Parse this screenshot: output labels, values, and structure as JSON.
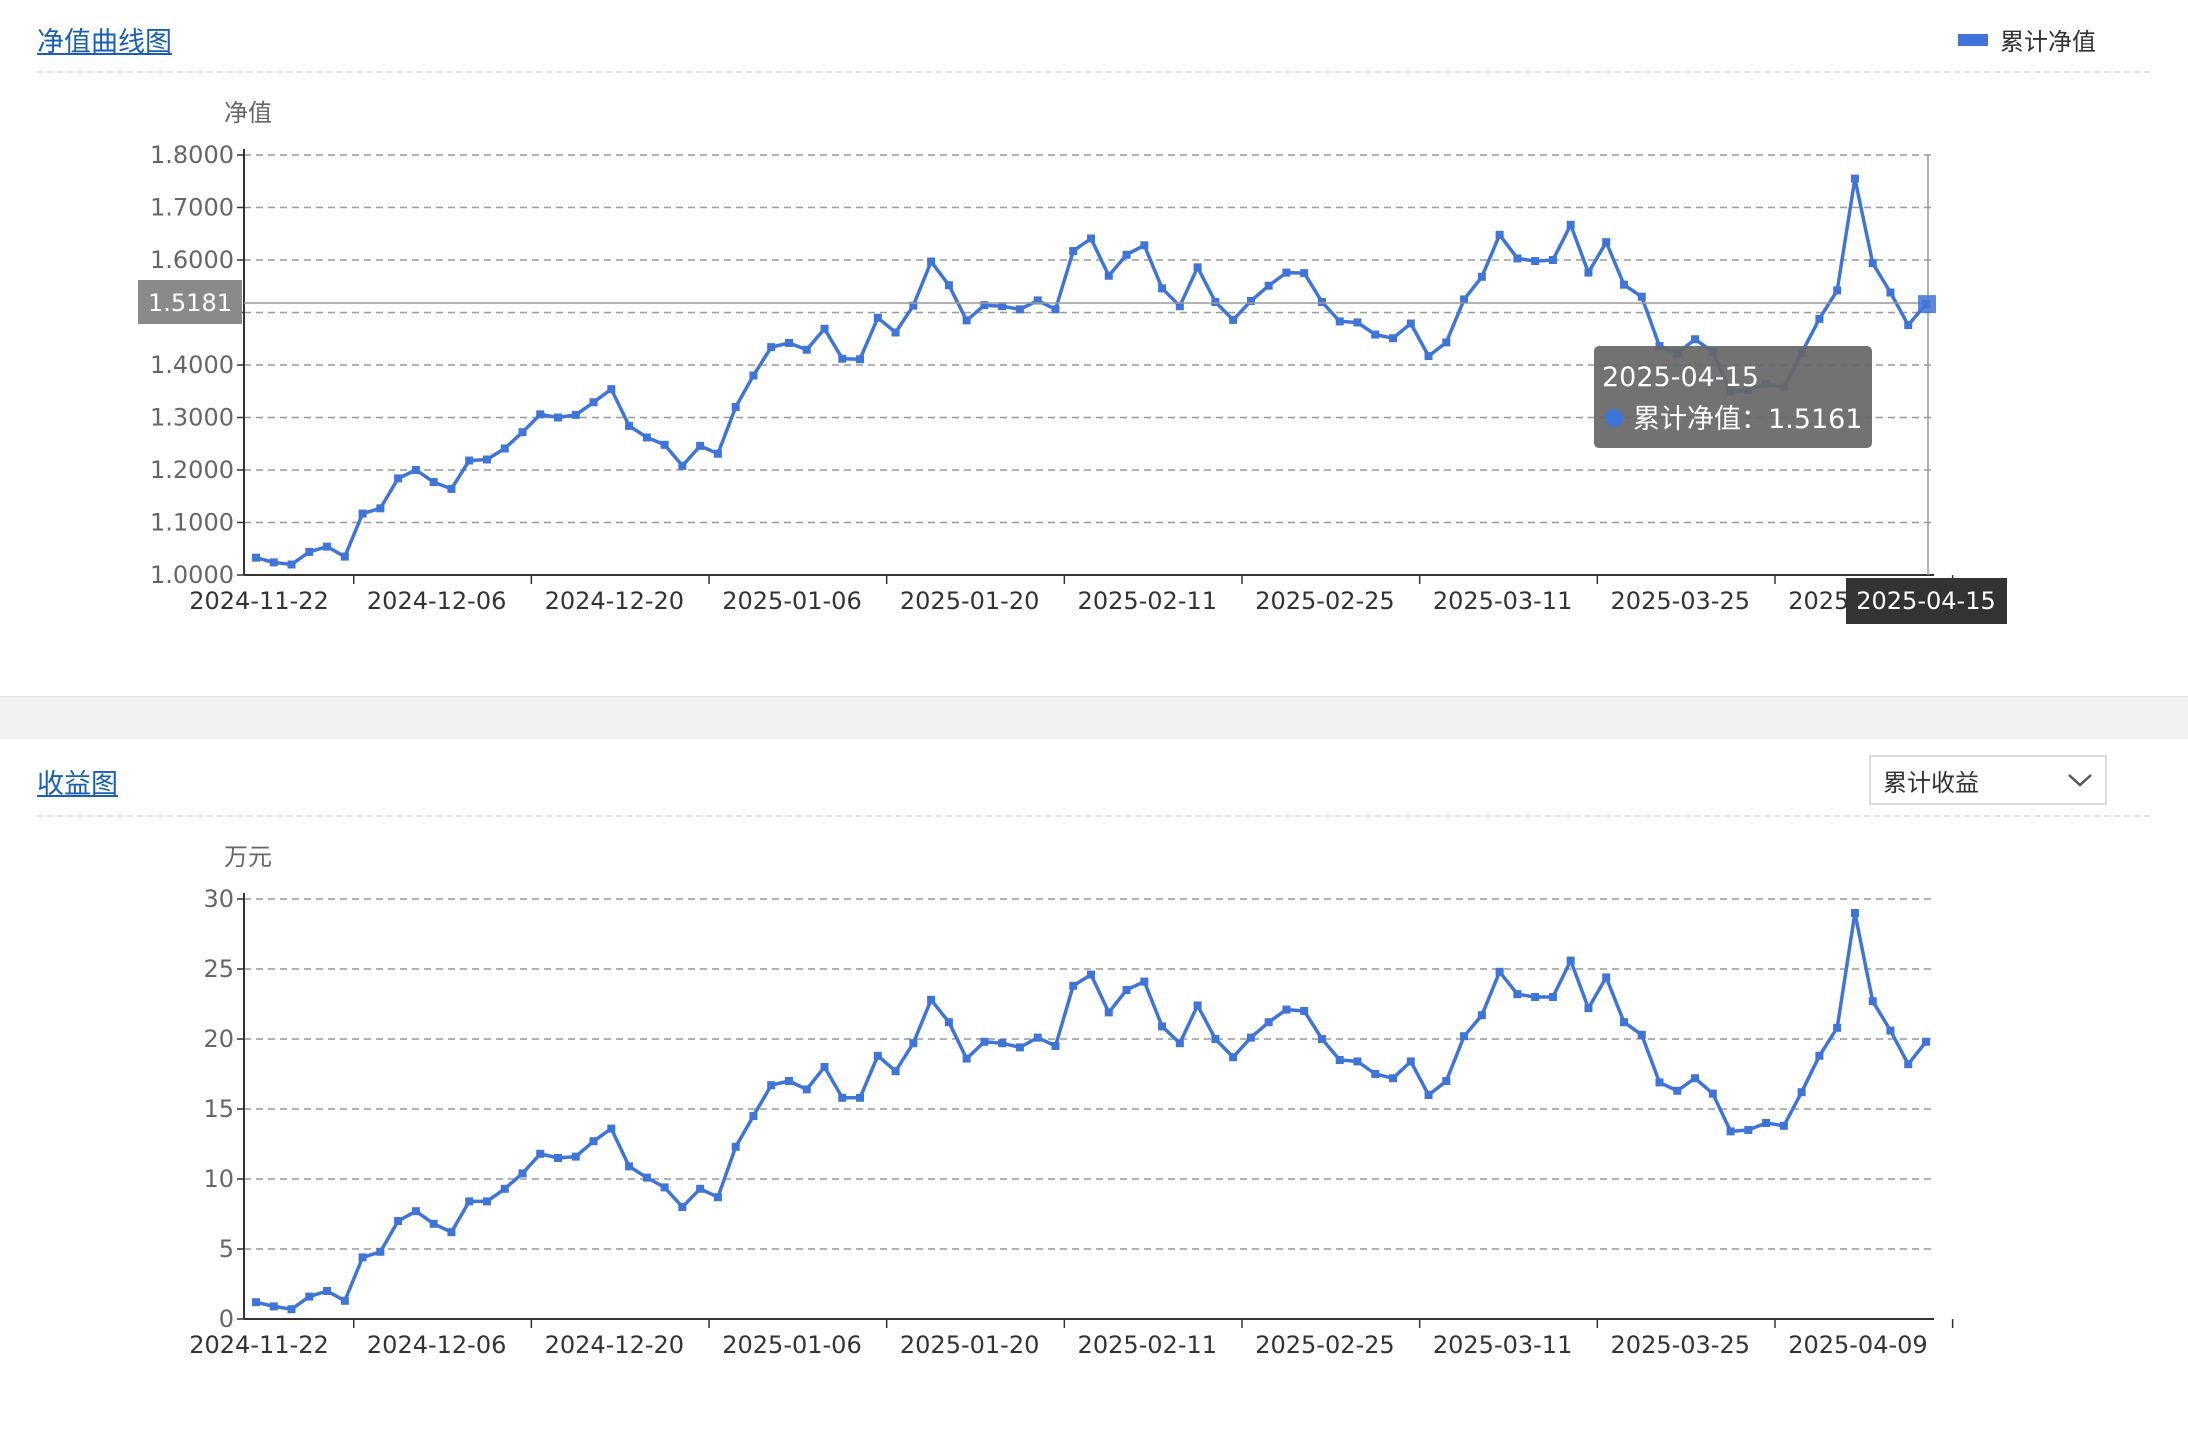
{
  "panel1": {
    "title": "净值曲线图",
    "legend": {
      "label": "累计净值",
      "color": "#3f74d8"
    }
  },
  "panel2": {
    "title": "收益图",
    "select": {
      "value": "累计收益",
      "icon": "chevron-down-icon"
    }
  },
  "colors": {
    "line": "#3f74d8",
    "grid": "#999999",
    "axis": "#333333",
    "tooltip_bg": "#666666",
    "axis_label_bg": "#333333"
  },
  "chart_data": [
    {
      "type": "line",
      "ylabel": "净值",
      "ylim": [
        1.0,
        1.8
      ],
      "yticks": [
        "1.0000",
        "1.1000",
        "1.2000",
        "1.3000",
        "1.4000",
        "1.5000",
        "1.6000",
        "1.7000",
        "1.8000"
      ],
      "xtick_labels": [
        "2024-11-22",
        "2024-12-06",
        "2024-12-20",
        "2025-01-06",
        "2025-01-20",
        "2025-02-11",
        "2025-02-25",
        "2025-03-11",
        "2025-03-25",
        "2025-04-09"
      ],
      "grid": true,
      "series": [
        {
          "name": "累计净值",
          "values": [
            1.033,
            1.024,
            1.02,
            1.044,
            1.054,
            1.035,
            1.117,
            1.127,
            1.184,
            1.2,
            1.177,
            1.164,
            1.218,
            1.22,
            1.241,
            1.272,
            1.306,
            1.3,
            1.305,
            1.329,
            1.354,
            1.284,
            1.262,
            1.248,
            1.208,
            1.246,
            1.231,
            1.32,
            1.38,
            1.434,
            1.442,
            1.429,
            1.469,
            1.412,
            1.411,
            1.49,
            1.462,
            1.513,
            1.597,
            1.552,
            1.485,
            1.514,
            1.512,
            1.506,
            1.523,
            1.506,
            1.617,
            1.641,
            1.57,
            1.61,
            1.628,
            1.546,
            1.512,
            1.586,
            1.52,
            1.486,
            1.522,
            1.551,
            1.576,
            1.575,
            1.52,
            1.483,
            1.481,
            1.458,
            1.451,
            1.479,
            1.417,
            1.443,
            1.525,
            1.568,
            1.648,
            1.603,
            1.598,
            1.6,
            1.667,
            1.576,
            1.634,
            1.553,
            1.53,
            1.436,
            1.422,
            1.449,
            1.425,
            1.349,
            1.352,
            1.364,
            1.357,
            1.423,
            1.488,
            1.542,
            1.755,
            1.594,
            1.538,
            1.476,
            1.516
          ]
        }
      ],
      "crosshair": {
        "value_label": "1.5181",
        "date_label": "2025-04-15"
      },
      "tooltip": {
        "date": "2025-04-15",
        "series_name": "累计净值",
        "separator": "：",
        "value": "1.5161"
      }
    },
    {
      "type": "line",
      "ylabel": "万元",
      "ylim": [
        0,
        30
      ],
      "yticks": [
        "0",
        "5",
        "10",
        "15",
        "20",
        "25",
        "30"
      ],
      "xtick_labels": [
        "2024-11-22",
        "2024-12-06",
        "2024-12-20",
        "2025-01-06",
        "2025-01-20",
        "2025-02-11",
        "2025-02-25",
        "2025-03-11",
        "2025-03-25",
        "2025-04-09"
      ],
      "grid": true,
      "series": [
        {
          "name": "累计收益",
          "values": [
            1.2,
            0.9,
            0.7,
            1.6,
            2.0,
            1.3,
            4.4,
            4.8,
            7.0,
            7.7,
            6.8,
            6.2,
            8.4,
            8.4,
            9.3,
            10.4,
            11.8,
            11.5,
            11.6,
            12.7,
            13.6,
            10.9,
            10.1,
            9.4,
            8.0,
            9.3,
            8.7,
            12.3,
            14.5,
            16.7,
            17.0,
            16.4,
            18.0,
            15.8,
            15.8,
            18.8,
            17.7,
            19.7,
            22.8,
            21.2,
            18.6,
            19.8,
            19.7,
            19.4,
            20.1,
            19.5,
            23.8,
            24.6,
            21.9,
            23.5,
            24.1,
            20.9,
            19.7,
            22.4,
            20.0,
            18.7,
            20.1,
            21.2,
            22.1,
            22.0,
            20.0,
            18.5,
            18.4,
            17.5,
            17.2,
            18.4,
            16.0,
            17.0,
            20.2,
            21.7,
            24.8,
            23.2,
            23.0,
            23.0,
            25.6,
            22.2,
            24.4,
            21.2,
            20.3,
            16.9,
            16.3,
            17.2,
            16.1,
            13.4,
            13.5,
            14.0,
            13.8,
            16.2,
            18.8,
            20.8,
            29.0,
            22.7,
            20.6,
            18.2,
            19.8
          ]
        }
      ]
    }
  ]
}
